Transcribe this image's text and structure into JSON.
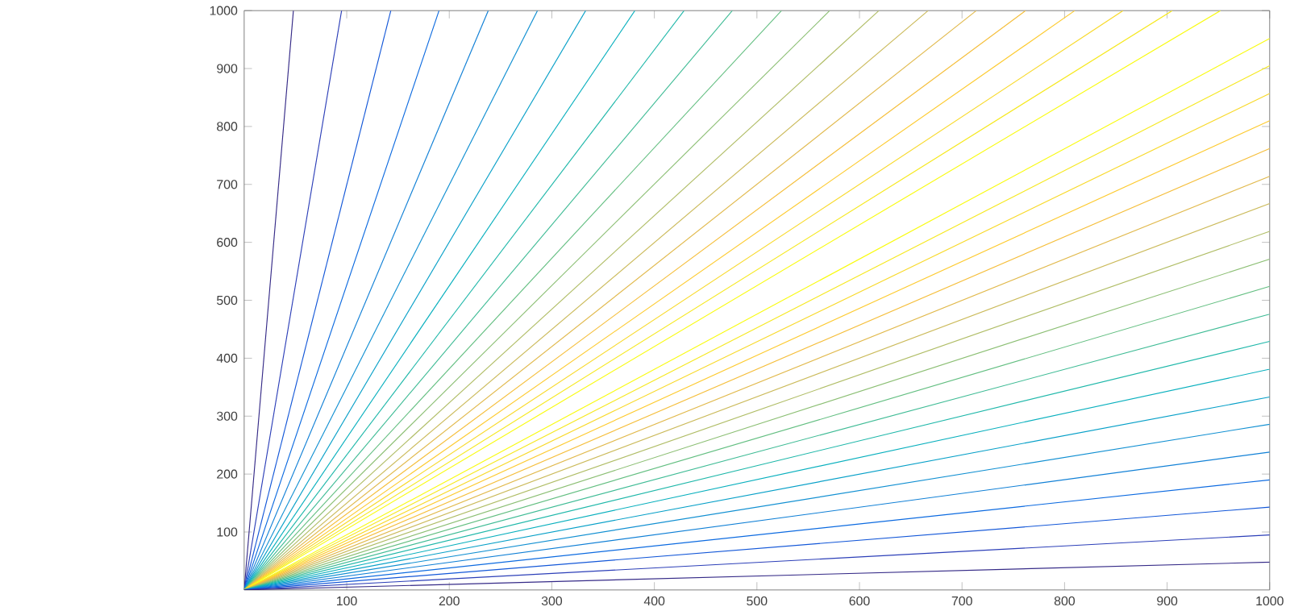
{
  "chart_data": {
    "type": "line",
    "xlim": [
      0,
      1000
    ],
    "ylim": [
      0,
      1000
    ],
    "xticks": [
      100,
      200,
      300,
      400,
      500,
      600,
      700,
      800,
      900,
      1000
    ],
    "yticks": [
      100,
      200,
      300,
      400,
      500,
      600,
      700,
      800,
      900,
      1000
    ],
    "grid": false,
    "marker": "none",
    "line_style": "solid",
    "series": [
      {
        "color": "#352a87",
        "x": [
          0,
          48
        ],
        "values": [
          0,
          1000
        ]
      },
      {
        "color": "#2c3fb8",
        "x": [
          0,
          95
        ],
        "values": [
          0,
          1000
        ]
      },
      {
        "color": "#1357d8",
        "x": [
          0,
          143
        ],
        "values": [
          0,
          1000
        ]
      },
      {
        "color": "#0c6ae0",
        "x": [
          0,
          190
        ],
        "values": [
          0,
          1000
        ]
      },
      {
        "color": "#1180d6",
        "x": [
          0,
          238
        ],
        "values": [
          0,
          1000
        ]
      },
      {
        "color": "#1290d2",
        "x": [
          0,
          286
        ],
        "values": [
          0,
          1000
        ]
      },
      {
        "color": "#08a0c8",
        "x": [
          0,
          333
        ],
        "values": [
          0,
          1000
        ]
      },
      {
        "color": "#0ab0be",
        "x": [
          0,
          381
        ],
        "values": [
          0,
          1000
        ]
      },
      {
        "color": "#20b8aa",
        "x": [
          0,
          429
        ],
        "values": [
          0,
          1000
        ]
      },
      {
        "color": "#40bc96",
        "x": [
          0,
          476
        ],
        "values": [
          0,
          1000
        ]
      },
      {
        "color": "#64bf82",
        "x": [
          0,
          524
        ],
        "values": [
          0,
          1000
        ]
      },
      {
        "color": "#8cbf74",
        "x": [
          0,
          571
        ],
        "values": [
          0,
          1000
        ]
      },
      {
        "color": "#b0bd66",
        "x": [
          0,
          619
        ],
        "values": [
          0,
          1000
        ]
      },
      {
        "color": "#cbba5a",
        "x": [
          0,
          667
        ],
        "values": [
          0,
          1000
        ]
      },
      {
        "color": "#e1b94c",
        "x": [
          0,
          714
        ],
        "values": [
          0,
          1000
        ]
      },
      {
        "color": "#f5be3a",
        "x": [
          0,
          762
        ],
        "values": [
          0,
          1000
        ]
      },
      {
        "color": "#fdca2e",
        "x": [
          0,
          810
        ],
        "values": [
          0,
          1000
        ]
      },
      {
        "color": "#f8d928",
        "x": [
          0,
          857
        ],
        "values": [
          0,
          1000
        ]
      },
      {
        "color": "#f6e81e",
        "x": [
          0,
          905
        ],
        "values": [
          0,
          1000
        ]
      },
      {
        "color": "#f9fb0e",
        "x": [
          0,
          952
        ],
        "values": [
          0,
          1000
        ]
      },
      {
        "color": "#f9fb0e",
        "x": [
          0,
          1000
        ],
        "values": [
          0,
          952
        ]
      },
      {
        "color": "#f6e81e",
        "x": [
          0,
          1000
        ],
        "values": [
          0,
          905
        ]
      },
      {
        "color": "#f8d928",
        "x": [
          0,
          1000
        ],
        "values": [
          0,
          857
        ]
      },
      {
        "color": "#fdca2e",
        "x": [
          0,
          1000
        ],
        "values": [
          0,
          810
        ]
      },
      {
        "color": "#f5be3a",
        "x": [
          0,
          1000
        ],
        "values": [
          0,
          762
        ]
      },
      {
        "color": "#e1b94c",
        "x": [
          0,
          1000
        ],
        "values": [
          0,
          714
        ]
      },
      {
        "color": "#cbba5a",
        "x": [
          0,
          1000
        ],
        "values": [
          0,
          667
        ]
      },
      {
        "color": "#b0bd66",
        "x": [
          0,
          1000
        ],
        "values": [
          0,
          619
        ]
      },
      {
        "color": "#8cbf74",
        "x": [
          0,
          1000
        ],
        "values": [
          0,
          571
        ]
      },
      {
        "color": "#64bf82",
        "x": [
          0,
          1000
        ],
        "values": [
          0,
          524
        ]
      },
      {
        "color": "#40bc96",
        "x": [
          0,
          1000
        ],
        "values": [
          0,
          476
        ]
      },
      {
        "color": "#20b8aa",
        "x": [
          0,
          1000
        ],
        "values": [
          0,
          429
        ]
      },
      {
        "color": "#0ab0be",
        "x": [
          0,
          1000
        ],
        "values": [
          0,
          381
        ]
      },
      {
        "color": "#08a0c8",
        "x": [
          0,
          1000
        ],
        "values": [
          0,
          333
        ]
      },
      {
        "color": "#1290d2",
        "x": [
          0,
          1000
        ],
        "values": [
          0,
          286
        ]
      },
      {
        "color": "#1180d6",
        "x": [
          0,
          1000
        ],
        "values": [
          0,
          238
        ]
      },
      {
        "color": "#0c6ae0",
        "x": [
          0,
          1000
        ],
        "values": [
          0,
          190
        ]
      },
      {
        "color": "#1357d8",
        "x": [
          0,
          1000
        ],
        "values": [
          0,
          143
        ]
      },
      {
        "color": "#2c3fb8",
        "x": [
          0,
          1000
        ],
        "values": [
          0,
          95
        ]
      },
      {
        "color": "#352a87",
        "x": [
          0,
          1000
        ],
        "values": [
          0,
          48
        ]
      }
    ]
  }
}
